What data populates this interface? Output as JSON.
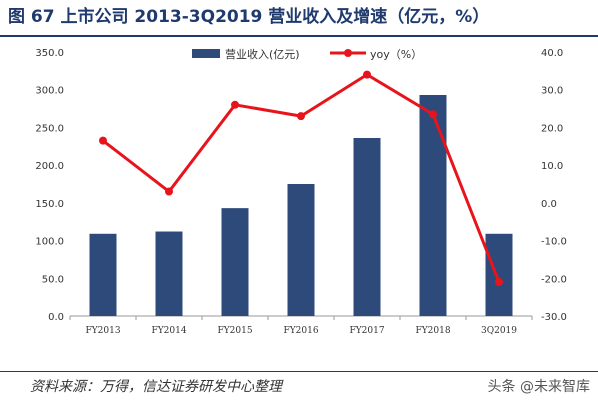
{
  "figure": {
    "title": "图 67 上市公司 2013-3Q2019 营业收入及增速（亿元，%）",
    "source": "资料来源：万得，信达证券研发中心整理",
    "watermark": "头条 @未来智库"
  },
  "chart_data": {
    "type": "bar+line",
    "categories": [
      "FY2013",
      "FY2014",
      "FY2015",
      "FY2016",
      "FY2017",
      "FY2018",
      "3Q2019"
    ],
    "series": [
      {
        "name": "营业收入(亿元)",
        "type": "bar",
        "axis": "left",
        "color": "#2e4a7a",
        "values": [
          109,
          112,
          143,
          175,
          236,
          293,
          109
        ]
      },
      {
        "name": "yoy（%）",
        "type": "line",
        "axis": "right",
        "color": "#e8141c",
        "values": [
          16.5,
          3,
          26,
          23,
          34,
          23.5,
          -21
        ]
      }
    ],
    "y_left": {
      "min": 0,
      "max": 350,
      "step": 50,
      "ticks": [
        "0.0",
        "50.0",
        "100.0",
        "150.0",
        "200.0",
        "250.0",
        "300.0",
        "350.0"
      ]
    },
    "y_right": {
      "min": -30,
      "max": 40,
      "step": 10,
      "ticks": [
        "-30.0",
        "-20.0",
        "-10.0",
        "0.0",
        "10.0",
        "20.0",
        "30.0",
        "40.0"
      ]
    },
    "legend_position": "top-center",
    "grid": false
  }
}
